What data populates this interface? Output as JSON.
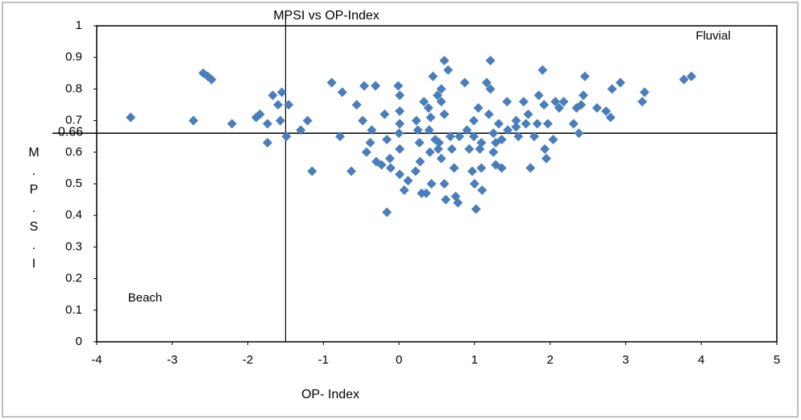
{
  "chart_data": {
    "type": "scatter",
    "title": "MPSI vs OP-Index",
    "x_label": "OP- Index",
    "y_label": "M.P.S.I",
    "x": [
      -3.55,
      -2.72,
      -2.59,
      -2.53,
      -2.48,
      -2.21,
      -1.89,
      -1.84,
      -1.74,
      -1.74,
      -1.67,
      -1.55,
      -1.6,
      -1.57,
      -1.46,
      -1.49,
      -1.3,
      -1.21,
      -1.15,
      -0.89,
      -0.75,
      -0.78,
      -0.63,
      -0.56,
      -0.46,
      -0.31,
      -0.48,
      -0.43,
      -0.36,
      -0.38,
      -0.3,
      -0.16,
      -0.19,
      -0.23,
      -0.16,
      -0.12,
      -0.01,
      0.01,
      0.01,
      0.01,
      0.0,
      0.01,
      0.01,
      -0.11,
      0.12,
      0.22,
      0.23,
      0.25,
      0.27,
      0.28,
      0.3,
      0.33,
      0.39,
      0.42,
      0.45,
      0.4,
      0.41,
      0.43,
      0.48,
      0.51,
      0.56,
      0.6,
      0.65,
      0.56,
      0.6,
      0.53,
      0.56,
      0.6,
      0.62,
      0.68,
      0.7,
      0.73,
      0.75,
      0.78,
      0.8,
      0.87,
      0.9,
      0.93,
      0.97,
      0.99,
      0.99,
      1.0,
      1.02,
      1.05,
      1.07,
      1.09,
      1.1,
      1.16,
      1.19,
      1.21,
      1.21,
      1.25,
      1.25,
      1.28,
      1.32,
      1.36,
      1.36,
      1.43,
      1.44,
      1.55,
      1.58,
      1.65,
      1.68,
      1.71,
      1.74,
      1.79,
      1.83,
      1.85,
      1.9,
      1.92,
      1.93,
      1.95,
      1.97,
      2.04,
      2.07,
      2.12,
      2.18,
      2.31,
      2.35,
      2.38,
      2.41,
      2.44,
      2.46,
      2.62,
      2.74,
      2.8,
      2.82,
      2.93,
      3.22,
      3.25,
      3.77,
      3.87,
      0.07,
      0.36,
      0.52,
      1.09,
      1.28,
      1.55
    ],
    "values": [
      0.71,
      0.7,
      0.85,
      0.84,
      0.83,
      0.69,
      0.71,
      0.72,
      0.69,
      0.63,
      0.78,
      0.79,
      0.75,
      0.7,
      0.75,
      0.65,
      0.67,
      0.7,
      0.54,
      0.82,
      0.79,
      0.65,
      0.54,
      0.75,
      0.81,
      0.81,
      0.7,
      0.6,
      0.67,
      0.63,
      0.57,
      0.64,
      0.72,
      0.56,
      0.41,
      0.58,
      0.81,
      0.78,
      0.73,
      0.69,
      0.66,
      0.61,
      0.53,
      0.55,
      0.51,
      0.54,
      0.7,
      0.67,
      0.63,
      0.57,
      0.47,
      0.76,
      0.74,
      0.71,
      0.84,
      0.67,
      0.6,
      0.5,
      0.64,
      0.78,
      0.8,
      0.89,
      0.86,
      0.76,
      0.72,
      0.63,
      0.58,
      0.5,
      0.45,
      0.65,
      0.61,
      0.55,
      0.46,
      0.44,
      0.65,
      0.82,
      0.67,
      0.61,
      0.54,
      0.7,
      0.65,
      0.5,
      0.42,
      0.74,
      0.61,
      0.55,
      0.48,
      0.82,
      0.72,
      0.89,
      0.8,
      0.66,
      0.6,
      0.56,
      0.69,
      0.64,
      0.55,
      0.76,
      0.67,
      0.68,
      0.65,
      0.76,
      0.69,
      0.72,
      0.55,
      0.65,
      0.69,
      0.78,
      0.86,
      0.75,
      0.61,
      0.58,
      0.69,
      0.64,
      0.76,
      0.74,
      0.76,
      0.69,
      0.74,
      0.66,
      0.75,
      0.78,
      0.84,
      0.74,
      0.73,
      0.71,
      0.8,
      0.82,
      0.76,
      0.79,
      0.83,
      0.84,
      0.48,
      0.47,
      0.61,
      0.63,
      0.63,
      0.7
    ],
    "color": "#4a7ebb",
    "xlim": [
      -4,
      5
    ],
    "xticks": [
      -4,
      -3,
      -2,
      -1,
      0,
      1,
      2,
      3,
      4,
      5
    ],
    "ylim": [
      0,
      1
    ],
    "yticks": [
      0,
      0.1,
      0.2,
      0.3,
      0.4,
      0.5,
      0.6,
      0.7,
      0.8,
      0.9,
      1
    ],
    "reference_x": -1.5,
    "reference_y": 0.66,
    "annotations": [
      "Fluvial",
      "Beach"
    ]
  }
}
